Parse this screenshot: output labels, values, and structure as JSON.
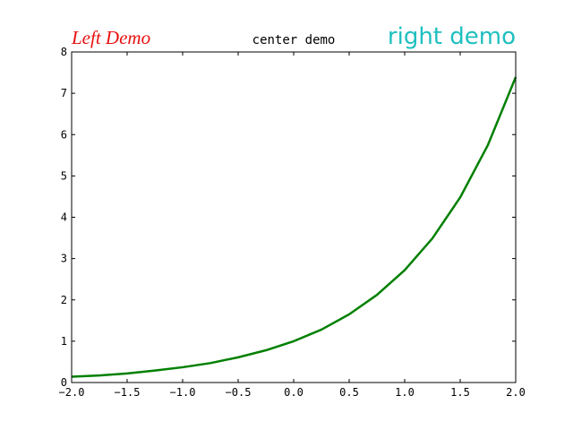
{
  "chart_data": {
    "type": "line",
    "titles": {
      "left": "Left Demo",
      "center": "center demo",
      "right": "right demo"
    },
    "title_colors": {
      "left": "#e81010",
      "center": "#000000",
      "right": "#1fbfbf"
    },
    "xlabel": "",
    "ylabel": "",
    "xlim": [
      -2.0,
      2.0
    ],
    "ylim": [
      0,
      8
    ],
    "xticks": [
      -2.0,
      -1.5,
      -1.0,
      -0.5,
      0.0,
      0.5,
      1.0,
      1.5,
      2.0
    ],
    "xtick_labels": [
      "−2.0",
      "−1.5",
      "−1.0",
      "−0.5",
      "0.0",
      "0.5",
      "1.0",
      "1.5",
      "2.0"
    ],
    "yticks": [
      0,
      1,
      2,
      3,
      4,
      5,
      6,
      7,
      8
    ],
    "ytick_labels": [
      "0",
      "1",
      "2",
      "3",
      "4",
      "5",
      "6",
      "7",
      "8"
    ],
    "grid": false,
    "series": [
      {
        "color": "#008000",
        "x": [
          -2.0,
          -1.75,
          -1.5,
          -1.25,
          -1.0,
          -0.75,
          -0.5,
          -0.25,
          0.0,
          0.25,
          0.5,
          0.75,
          1.0,
          1.25,
          1.5,
          1.75,
          2.0
        ],
        "y": [
          0.14,
          0.17,
          0.22,
          0.29,
          0.37,
          0.47,
          0.61,
          0.78,
          1.0,
          1.28,
          1.65,
          2.12,
          2.72,
          3.49,
          4.48,
          5.75,
          7.39
        ]
      }
    ]
  }
}
